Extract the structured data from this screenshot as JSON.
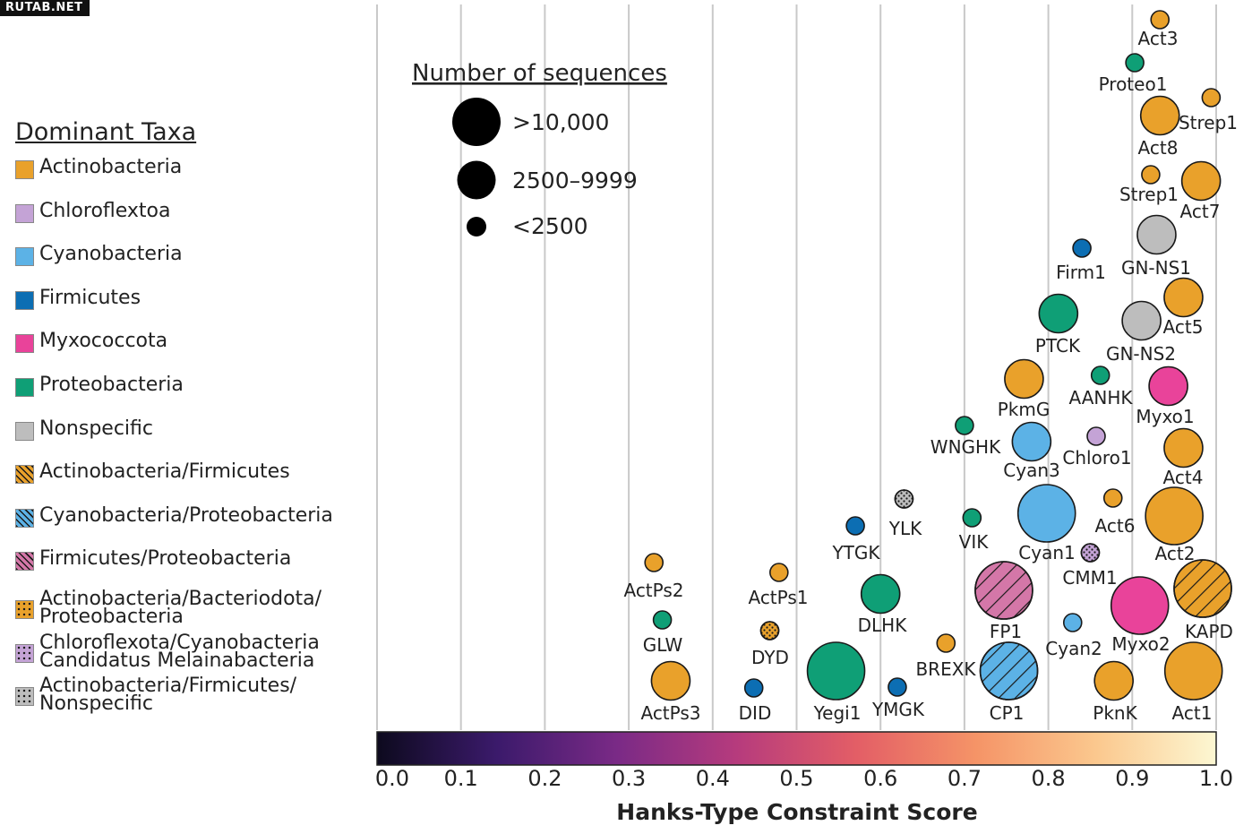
{
  "watermark": "RUTAB.NET",
  "legend": {
    "title": "Dominant Taxa",
    "items": [
      {
        "label": "Actinobacteria",
        "fill": "#e9a12b",
        "pattern": "none"
      },
      {
        "label": "Chloroflextoa",
        "fill": "#c4a3d6",
        "pattern": "none"
      },
      {
        "label": "Cyanobacteria",
        "fill": "#5cb2e6",
        "pattern": "none"
      },
      {
        "label": "Firmicutes",
        "fill": "#0c6eb3",
        "pattern": "none"
      },
      {
        "label": "Myxococcota",
        "fill": "#e9439a",
        "pattern": "none"
      },
      {
        "label": "Proteobacteria",
        "fill": "#0f9f76",
        "pattern": "none"
      },
      {
        "label": "Nonspecific",
        "fill": "#bdbdbd",
        "pattern": "none"
      },
      {
        "label": "Actinobacteria/Firmicutes",
        "fill": "#e9a12b",
        "pattern": "hatch"
      },
      {
        "label": "Cyanobacteria/Proteobacteria",
        "fill": "#5cb2e6",
        "pattern": "hatch"
      },
      {
        "label": "Firmicutes/Proteobacteria",
        "fill": "#d477a8",
        "pattern": "hatch"
      },
      {
        "label": "Actinobacteria/Bacteriodota/\nProteobacteria",
        "fill": "#e9a12b",
        "pattern": "dots"
      },
      {
        "label": "Chloroflexota/Cyanobacteria\nCandidatus Melainabacteria",
        "fill": "#c4a3d6",
        "pattern": "dots"
      },
      {
        "label": "Actinobacteria/Firmicutes/\nNonspecific",
        "fill": "#bdbdbd",
        "pattern": "dots"
      }
    ]
  },
  "size_legend": {
    "title": "Number of sequences",
    "items": [
      {
        "label": ">10,000",
        "size": "large"
      },
      {
        "label": "2500–9999",
        "size": "medium"
      },
      {
        "label": "<2500",
        "size": "small"
      }
    ]
  },
  "colors": {
    "Actinobacteria": "#e9a12b",
    "Chloroflextoa": "#c4a3d6",
    "Cyanobacteria": "#5cb2e6",
    "Firmicutes": "#0c6eb3",
    "Myxococcota": "#e9439a",
    "Proteobacteria": "#0f9f76",
    "Nonspecific": "#bdbdbd",
    "Firmicutes/Proteobacteria": "#d477a8",
    "colorbar_stops": [
      "#0d0a1e",
      "#3b1a6b",
      "#7a2a86",
      "#b63b7d",
      "#e35e66",
      "#f59467",
      "#fbc88e",
      "#fcf7d2"
    ]
  },
  "chart_data": {
    "type": "scatter",
    "xlabel": "Hanks-Type Constraint Score",
    "xlim": [
      0.0,
      1.0
    ],
    "xticks": [
      "0.0",
      "0.1",
      "0.2",
      "0.3",
      "0.4",
      "0.5",
      "0.6",
      "0.7",
      "0.8",
      "0.9",
      "1.0"
    ],
    "grid": true,
    "colorbar": "magma",
    "points": [
      {
        "name": "Act3",
        "x": 0.933,
        "taxa": "Actinobacteria",
        "size": "small"
      },
      {
        "name": "Proteo1",
        "x": 0.903,
        "taxa": "Proteobacteria",
        "size": "small"
      },
      {
        "name": "Strep1",
        "x": 0.994,
        "taxa": "Actinobacteria",
        "size": "small"
      },
      {
        "name": "Act8",
        "x": 0.933,
        "taxa": "Actinobacteria",
        "size": "medium"
      },
      {
        "name": "Strep1",
        "x": 0.922,
        "taxa": "Actinobacteria",
        "size": "small"
      },
      {
        "name": "Act7",
        "x": 0.982,
        "taxa": "Actinobacteria",
        "size": "medium"
      },
      {
        "name": "GN-NS1",
        "x": 0.929,
        "taxa": "Nonspecific",
        "size": "medium"
      },
      {
        "name": "Firm1",
        "x": 0.84,
        "taxa": "Firmicutes",
        "size": "small"
      },
      {
        "name": "PTCK",
        "x": 0.812,
        "taxa": "Proteobacteria",
        "size": "medium"
      },
      {
        "name": "Act5",
        "x": 0.961,
        "taxa": "Actinobacteria",
        "size": "medium"
      },
      {
        "name": "GN-NS2",
        "x": 0.911,
        "taxa": "Nonspecific",
        "size": "medium"
      },
      {
        "name": "PkmG",
        "x": 0.771,
        "taxa": "Actinobacteria",
        "size": "medium"
      },
      {
        "name": "AANHK",
        "x": 0.862,
        "taxa": "Proteobacteria",
        "size": "small"
      },
      {
        "name": "Myxo1",
        "x": 0.943,
        "taxa": "Myxococcota",
        "size": "medium"
      },
      {
        "name": "WNGHK",
        "x": 0.7,
        "taxa": "Proteobacteria",
        "size": "small"
      },
      {
        "name": "Cyan3",
        "x": 0.78,
        "taxa": "Cyanobacteria",
        "size": "medium"
      },
      {
        "name": "Chloro1",
        "x": 0.857,
        "taxa": "Chloroflextoa",
        "size": "small"
      },
      {
        "name": "Act4",
        "x": 0.961,
        "taxa": "Actinobacteria",
        "size": "medium"
      },
      {
        "name": "YLK",
        "x": 0.628,
        "taxa": "Actinobacteria/Firmicutes/Nonspecific",
        "size": "small"
      },
      {
        "name": "YTGK",
        "x": 0.57,
        "taxa": "Firmicutes",
        "size": "small"
      },
      {
        "name": "VIK",
        "x": 0.709,
        "taxa": "Proteobacteria",
        "size": "small"
      },
      {
        "name": "Cyan1",
        "x": 0.798,
        "taxa": "Cyanobacteria",
        "size": "large"
      },
      {
        "name": "Act6",
        "x": 0.877,
        "taxa": "Actinobacteria",
        "size": "small"
      },
      {
        "name": "Act2",
        "x": 0.95,
        "taxa": "Actinobacteria",
        "size": "large"
      },
      {
        "name": "CMM1",
        "x": 0.85,
        "taxa": "Chloroflexota/Cyanobacteria Candidatus Melainabacteria",
        "size": "small"
      },
      {
        "name": "ActPs2",
        "x": 0.33,
        "taxa": "Actinobacteria",
        "size": "small"
      },
      {
        "name": "ActPs1",
        "x": 0.479,
        "taxa": "Actinobacteria",
        "size": "small"
      },
      {
        "name": "DLHK",
        "x": 0.6,
        "taxa": "Proteobacteria",
        "size": "medium"
      },
      {
        "name": "FP1",
        "x": 0.747,
        "taxa": "Firmicutes/Proteobacteria",
        "size": "large"
      },
      {
        "name": "Myxo2",
        "x": 0.909,
        "taxa": "Myxococcota",
        "size": "large"
      },
      {
        "name": "KAPD",
        "x": 0.984,
        "taxa": "Actinobacteria/Firmicutes",
        "size": "large"
      },
      {
        "name": "GLW",
        "x": 0.34,
        "taxa": "Proteobacteria",
        "size": "small"
      },
      {
        "name": "DYD",
        "x": 0.468,
        "taxa": "Actinobacteria/Bacteriodota/Proteobacteria",
        "size": "small"
      },
      {
        "name": "BREXK",
        "x": 0.678,
        "taxa": "Actinobacteria",
        "size": "small"
      },
      {
        "name": "Cyan2",
        "x": 0.829,
        "taxa": "Cyanobacteria",
        "size": "small"
      },
      {
        "name": "ActPs3",
        "x": 0.35,
        "taxa": "Actinobacteria",
        "size": "medium"
      },
      {
        "name": "DID",
        "x": 0.449,
        "taxa": "Firmicutes",
        "size": "small"
      },
      {
        "name": "Yegi1",
        "x": 0.547,
        "taxa": "Proteobacteria",
        "size": "large"
      },
      {
        "name": "YMGK",
        "x": 0.62,
        "taxa": "Firmicutes",
        "size": "small"
      },
      {
        "name": "CP1",
        "x": 0.753,
        "taxa": "Cyanobacteria/Proteobacteria",
        "size": "large"
      },
      {
        "name": "PknK",
        "x": 0.878,
        "taxa": "Actinobacteria",
        "size": "medium"
      },
      {
        "name": "Act1",
        "x": 0.973,
        "taxa": "Actinobacteria",
        "size": "large"
      }
    ]
  }
}
